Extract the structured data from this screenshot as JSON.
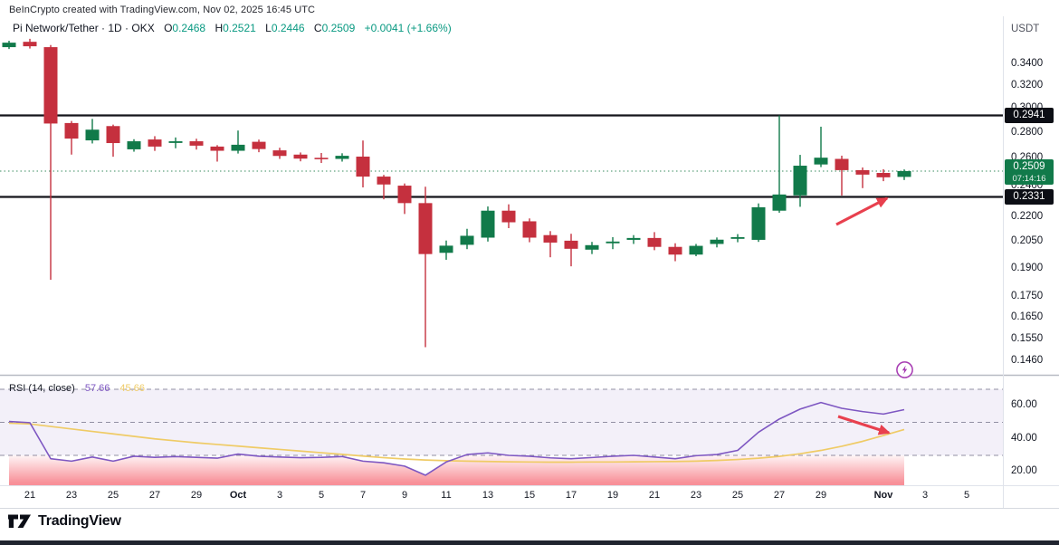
{
  "header": {
    "attribution": "BeInCrypto created with TradingView.com, Nov 02, 2025 16:45 UTC",
    "symbol_line": "Pi Network/Tether · 1D · OKX",
    "o_label": "O",
    "o_value": "0.2468",
    "h_label": "H",
    "h_value": "0.2521",
    "l_label": "L",
    "l_value": "0.2446",
    "c_label": "C",
    "c_value": "0.2509",
    "change": "+0.0041 (+1.66%)"
  },
  "axis": {
    "currency": "USDT",
    "price_ticks": [
      {
        "label": "0.3400",
        "value": 0.34
      },
      {
        "label": "0.3200",
        "value": 0.32
      },
      {
        "label": "0.3000",
        "value": 0.3
      },
      {
        "label": "0.2800",
        "value": 0.28
      },
      {
        "label": "0.2600",
        "value": 0.26
      },
      {
        "label": "0.2400",
        "value": 0.24
      },
      {
        "label": "0.2200",
        "value": 0.22
      },
      {
        "label": "0.2050",
        "value": 0.205
      },
      {
        "label": "0.1900",
        "value": 0.19
      },
      {
        "label": "0.1750",
        "value": 0.175
      },
      {
        "label": "0.1650",
        "value": 0.165
      },
      {
        "label": "0.1550",
        "value": 0.155
      },
      {
        "label": "0.1460",
        "value": 0.146
      }
    ],
    "rsi_ticks": [
      {
        "label": "60.00",
        "value": 60
      },
      {
        "label": "40.00",
        "value": 40
      },
      {
        "label": "20.00",
        "value": 20
      }
    ],
    "time_labels": [
      {
        "label": "21",
        "day_index": 1,
        "bold": false
      },
      {
        "label": "23",
        "day_index": 3,
        "bold": false
      },
      {
        "label": "25",
        "day_index": 5,
        "bold": false
      },
      {
        "label": "27",
        "day_index": 7,
        "bold": false
      },
      {
        "label": "29",
        "day_index": 9,
        "bold": false
      },
      {
        "label": "Oct",
        "day_index": 11,
        "bold": true
      },
      {
        "label": "3",
        "day_index": 13,
        "bold": false
      },
      {
        "label": "5",
        "day_index": 15,
        "bold": false
      },
      {
        "label": "7",
        "day_index": 17,
        "bold": false
      },
      {
        "label": "9",
        "day_index": 19,
        "bold": false
      },
      {
        "label": "11",
        "day_index": 21,
        "bold": false
      },
      {
        "label": "13",
        "day_index": 23,
        "bold": false
      },
      {
        "label": "15",
        "day_index": 25,
        "bold": false
      },
      {
        "label": "17",
        "day_index": 27,
        "bold": false
      },
      {
        "label": "19",
        "day_index": 29,
        "bold": false
      },
      {
        "label": "21",
        "day_index": 31,
        "bold": false
      },
      {
        "label": "23",
        "day_index": 33,
        "bold": false
      },
      {
        "label": "25",
        "day_index": 35,
        "bold": false
      },
      {
        "label": "27",
        "day_index": 37,
        "bold": false
      },
      {
        "label": "29",
        "day_index": 39,
        "bold": false
      },
      {
        "label": "Nov",
        "day_index": 42,
        "bold": true
      },
      {
        "label": "3",
        "day_index": 44,
        "bold": false
      },
      {
        "label": "5",
        "day_index": 46,
        "bold": false
      }
    ]
  },
  "badges": {
    "resistance": "0.2941",
    "support": "0.2331",
    "last_price": "0.2509",
    "countdown": "07:14:16"
  },
  "rsi_header": {
    "title": "RSI",
    "params": "(14, close)",
    "value": "57.66",
    "ma_value": "45.66"
  },
  "footer": {
    "brand": "TradingView"
  },
  "icons": {
    "flash": "flash-circle-icon",
    "logo": "tradingview-logo"
  },
  "colors": {
    "up": "#117a4a",
    "down": "#c5303e",
    "ohlc_text": "#089981",
    "rsi_line": "#7E57C2",
    "rsi_ma_line": "#EFCB66",
    "level_line": "#14151a",
    "arrow": "#E8404E",
    "band_fill": "rgba(126,87,194,0.09)",
    "oversold_fill": "#F23645",
    "last_price_line": "#3a8d5f"
  },
  "chart_data": {
    "type": "candlestick+rsi",
    "title": "Pi Network/Tether 1D OKX with RSI(14)",
    "price_axis_range_labels": [
      0.146,
      0.34
    ],
    "levels": {
      "resistance": 0.2941,
      "support": 0.2331,
      "last": 0.2509
    },
    "rsi_bands": [
      70,
      50,
      30
    ],
    "dates": [
      "Sep 20",
      "Sep 21",
      "Sep 22",
      "Sep 23",
      "Sep 24",
      "Sep 25",
      "Sep 26",
      "Sep 27",
      "Sep 28",
      "Sep 29",
      "Sep 30",
      "Oct 1",
      "Oct 2",
      "Oct 3",
      "Oct 4",
      "Oct 5",
      "Oct 6",
      "Oct 7",
      "Oct 8",
      "Oct 9",
      "Oct 10",
      "Oct 11",
      "Oct 12",
      "Oct 13",
      "Oct 14",
      "Oct 15",
      "Oct 16",
      "Oct 17",
      "Oct 18",
      "Oct 19",
      "Oct 20",
      "Oct 21",
      "Oct 22",
      "Oct 23",
      "Oct 24",
      "Oct 25",
      "Oct 26",
      "Oct 27",
      "Oct 28",
      "Oct 29",
      "Oct 30",
      "Oct 31",
      "Nov 1",
      "Nov 2"
    ],
    "candles_ohlc": [
      [
        0.3574,
        0.364,
        0.3555,
        0.362
      ],
      [
        0.3629,
        0.366,
        0.356,
        0.3583
      ],
      [
        0.3574,
        0.3595,
        0.184,
        0.2874
      ],
      [
        0.2878,
        0.2895,
        0.263,
        0.2753
      ],
      [
        0.2739,
        0.2912,
        0.2715,
        0.2824
      ],
      [
        0.2853,
        0.2865,
        0.2614,
        0.2718
      ],
      [
        0.267,
        0.2748,
        0.2652,
        0.2732
      ],
      [
        0.2746,
        0.2772,
        0.2658,
        0.2691
      ],
      [
        0.2719,
        0.2762,
        0.2678,
        0.2732
      ],
      [
        0.2732,
        0.2752,
        0.2668,
        0.2698
      ],
      [
        0.2691,
        0.2702,
        0.2578,
        0.2659
      ],
      [
        0.2659,
        0.2817,
        0.2638,
        0.2705
      ],
      [
        0.2728,
        0.2745,
        0.2648,
        0.2672
      ],
      [
        0.2662,
        0.2682,
        0.2598,
        0.262
      ],
      [
        0.263,
        0.2646,
        0.258,
        0.26
      ],
      [
        0.2606,
        0.2642,
        0.2568,
        0.2601
      ],
      [
        0.2598,
        0.264,
        0.2578,
        0.2621
      ],
      [
        0.2615,
        0.2738,
        0.2395,
        0.247
      ],
      [
        0.247,
        0.2482,
        0.2315,
        0.2415
      ],
      [
        0.2407,
        0.2422,
        0.222,
        0.229
      ],
      [
        0.229,
        0.24,
        0.1518,
        0.198
      ],
      [
        0.1987,
        0.2058,
        0.1948,
        0.2028
      ],
      [
        0.2033,
        0.2128,
        0.2008,
        0.2086
      ],
      [
        0.2075,
        0.2268,
        0.2052,
        0.2241
      ],
      [
        0.2241,
        0.2282,
        0.2132,
        0.2168
      ],
      [
        0.2174,
        0.2192,
        0.2048,
        0.2075
      ],
      [
        0.209,
        0.2114,
        0.1962,
        0.2046
      ],
      [
        0.2057,
        0.2098,
        0.1912,
        0.201
      ],
      [
        0.2005,
        0.205,
        0.198,
        0.2031
      ],
      [
        0.2042,
        0.2078,
        0.2008,
        0.2052
      ],
      [
        0.2062,
        0.209,
        0.2038,
        0.2073
      ],
      [
        0.2073,
        0.2108,
        0.2002,
        0.2021
      ],
      [
        0.2021,
        0.2042,
        0.194,
        0.1977
      ],
      [
        0.1977,
        0.2038,
        0.1968,
        0.2027
      ],
      [
        0.2038,
        0.2076,
        0.2018,
        0.2063
      ],
      [
        0.2068,
        0.2096,
        0.2048,
        0.2078
      ],
      [
        0.2062,
        0.2288,
        0.205,
        0.2263
      ],
      [
        0.2241,
        0.2941,
        0.2228,
        0.2347
      ],
      [
        0.2341,
        0.2628,
        0.2266,
        0.2548
      ],
      [
        0.2557,
        0.2848,
        0.2538,
        0.2607
      ],
      [
        0.2598,
        0.2622,
        0.234,
        0.2516
      ],
      [
        0.2516,
        0.2535,
        0.239,
        0.2484
      ],
      [
        0.2496,
        0.2522,
        0.2438,
        0.2465
      ],
      [
        0.2468,
        0.2521,
        0.2446,
        0.2509
      ]
    ],
    "rsi": [
      50.5,
      49.8,
      28.0,
      26.5,
      29.0,
      26.5,
      29.5,
      28.8,
      29.3,
      28.8,
      28.3,
      30.8,
      29.5,
      29.0,
      28.6,
      28.8,
      29.3,
      26.5,
      25.5,
      23.5,
      18.0,
      26.0,
      30.5,
      31.5,
      30.0,
      29.5,
      28.5,
      28.0,
      28.7,
      29.5,
      30.0,
      29.0,
      28.0,
      29.8,
      30.5,
      33.0,
      44.0,
      52.0,
      58.0,
      62.0,
      58.5,
      56.5,
      55.0,
      57.66
    ],
    "rsi_ma": [
      49.5,
      49.0,
      47.5,
      46.0,
      44.5,
      43.0,
      41.5,
      40.0,
      38.8,
      37.6,
      36.6,
      35.6,
      34.6,
      33.6,
      32.6,
      31.6,
      30.6,
      29.6,
      28.6,
      27.8,
      27.2,
      26.8,
      26.5,
      26.3,
      26.1,
      26.0,
      25.9,
      25.9,
      26.0,
      26.0,
      26.1,
      26.2,
      26.3,
      26.5,
      26.9,
      27.5,
      28.3,
      29.4,
      31.0,
      33.0,
      35.5,
      38.5,
      42.0,
      45.66
    ],
    "annotations": [
      {
        "name": "price-arrow",
        "from": [
          924,
          248
        ],
        "to": [
          980,
          219
        ]
      },
      {
        "name": "rsi-arrow",
        "from": [
          926,
          460
        ],
        "to": [
          982,
          478
        ]
      }
    ]
  }
}
